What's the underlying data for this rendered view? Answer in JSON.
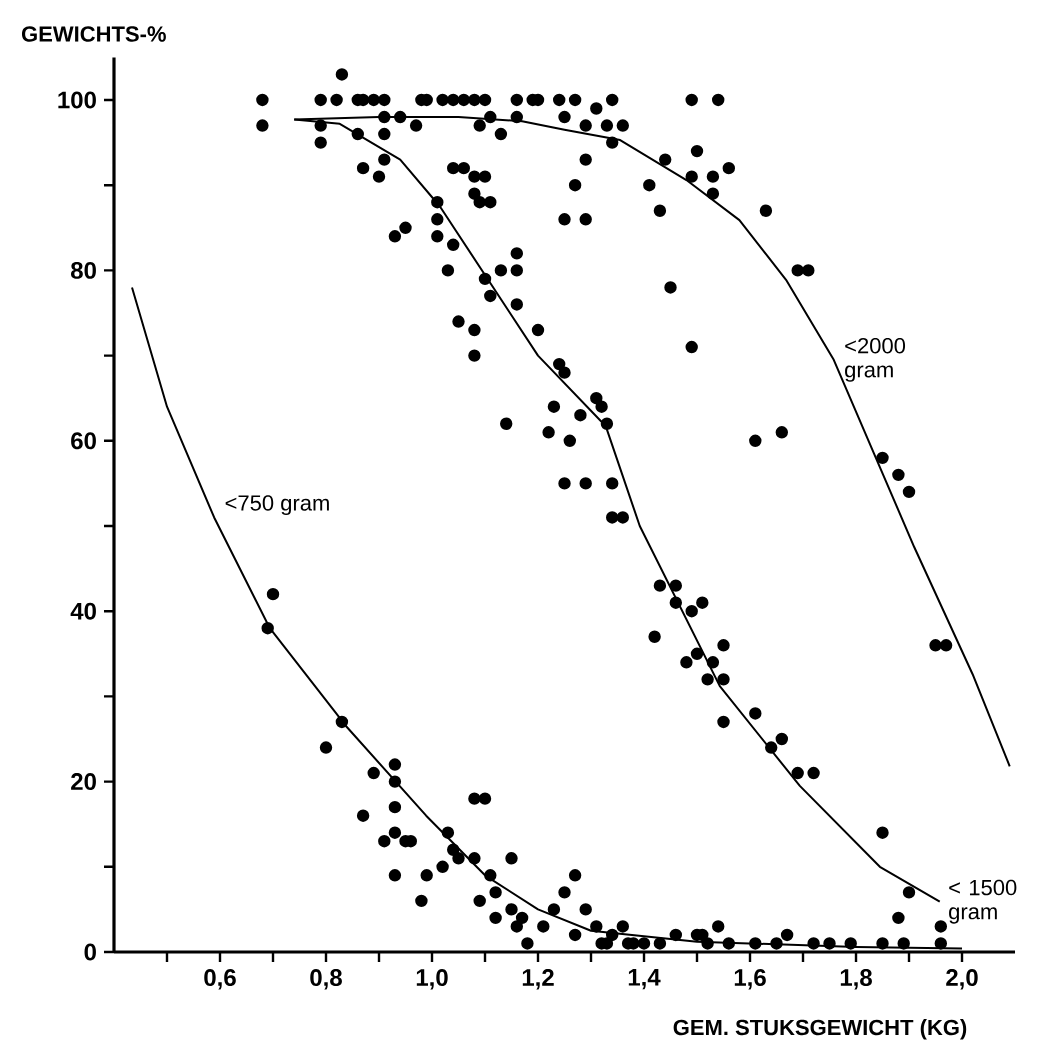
{
  "chart_data": {
    "type": "scatter",
    "ylabel": "GEWICHTS-%",
    "xlabel": "GEM. STUKSGEWICHT (KG)",
    "xlim": [
      0.4,
      2.1
    ],
    "ylim": [
      0,
      105
    ],
    "xticks": [
      {
        "value": 0.5,
        "label": null
      },
      {
        "value": 0.6,
        "label": "0,6"
      },
      {
        "value": 0.7,
        "label": null
      },
      {
        "value": 0.8,
        "label": "0,8"
      },
      {
        "value": 0.9,
        "label": null
      },
      {
        "value": 1.0,
        "label": "1,0"
      },
      {
        "value": 1.1,
        "label": null
      },
      {
        "value": 1.2,
        "label": "1,2"
      },
      {
        "value": 1.3,
        "label": null
      },
      {
        "value": 1.4,
        "label": "1,4"
      },
      {
        "value": 1.5,
        "label": null
      },
      {
        "value": 1.6,
        "label": "1,6"
      },
      {
        "value": 1.7,
        "label": null
      },
      {
        "value": 1.8,
        "label": "1,8"
      },
      {
        "value": 1.9,
        "label": null
      },
      {
        "value": 2.0,
        "label": "2,0"
      }
    ],
    "yticks": [
      0,
      {
        "value": 10,
        "label": null
      },
      20,
      {
        "value": 30,
        "label": null
      },
      40,
      {
        "value": 50,
        "label": null
      },
      60,
      {
        "value": 70,
        "label": null
      },
      80,
      {
        "value": 90,
        "label": null
      },
      100
    ],
    "series": [
      {
        "color": "#000000",
        "marker": "circle",
        "x": [
          0.68,
          0.68,
          0.79,
          0.82,
          0.86,
          0.87,
          0.89,
          0.91,
          0.98,
          0.99,
          1.02,
          1.04,
          1.06,
          1.08,
          1.1,
          1.16,
          1.19,
          0.83,
          0.79,
          0.79,
          0.86,
          0.91,
          0.91,
          0.94,
          0.97,
          1.09,
          1.11,
          1.13,
          1.16,
          0.87,
          0.9,
          0.91,
          0.93,
          0.95,
          1.01,
          1.01,
          1.01,
          1.04,
          1.03,
          1.05,
          1.08,
          1.08,
          1.04,
          1.06,
          1.08,
          1.1,
          1.08,
          1.09,
          1.11,
          1.1,
          1.13,
          1.16,
          1.16,
          1.11,
          1.16,
          1.14,
          1.2,
          1.2,
          1.24,
          1.27,
          1.25,
          1.31,
          1.34,
          1.29,
          1.33,
          1.36,
          1.34,
          1.49,
          1.54,
          1.29,
          1.27,
          1.44,
          1.5,
          1.49,
          1.53,
          1.56,
          1.41,
          1.53,
          1.25,
          1.29,
          1.43,
          1.63,
          1.69,
          1.71,
          1.45,
          1.49,
          1.24,
          1.25,
          1.23,
          1.31,
          1.28,
          1.32,
          1.33,
          1.22,
          1.26,
          1.25,
          1.29,
          1.34,
          1.34,
          1.36,
          1.61,
          1.66,
          1.85,
          1.88,
          1.9,
          0.7,
          0.69,
          0.8,
          0.83,
          0.89,
          0.93,
          0.93,
          0.87,
          0.93,
          0.93,
          0.91,
          0.95,
          0.96,
          0.93,
          0.99,
          0.98,
          1.03,
          1.02,
          1.04,
          1.05,
          1.08,
          1.1,
          1.08,
          1.11,
          1.09,
          1.12,
          1.12,
          1.15,
          1.15,
          1.16,
          1.18,
          1.43,
          1.46,
          1.46,
          1.49,
          1.51,
          1.42,
          1.48,
          1.5,
          1.53,
          1.55,
          1.52,
          1.55,
          1.55,
          1.61,
          1.64,
          1.66,
          1.69,
          1.72,
          1.85,
          1.9,
          1.88,
          1.96,
          1.95,
          1.97,
          1.17,
          1.21,
          1.23,
          1.25,
          1.27,
          1.27,
          1.29,
          1.31,
          1.32,
          1.34,
          1.36,
          1.33,
          1.37,
          1.4,
          1.43,
          1.46,
          1.5,
          1.51,
          1.54,
          1.56,
          1.61,
          1.65,
          1.67,
          1.72,
          1.75,
          1.85,
          1.89,
          1.96,
          1.38,
          1.52,
          1.79
        ],
        "values": [
          100,
          97,
          100,
          100,
          100,
          100,
          100,
          100,
          100,
          100,
          100,
          100,
          100,
          100,
          100,
          100,
          100,
          103,
          97,
          95,
          96,
          96,
          98,
          98,
          97,
          97,
          98,
          96,
          98,
          92,
          91,
          93,
          84,
          85,
          88,
          86,
          84,
          83,
          80,
          74,
          73,
          70,
          92,
          92,
          91,
          91,
          89,
          88,
          88,
          79,
          80,
          82,
          80,
          77,
          76,
          62,
          73,
          100,
          100,
          100,
          98,
          99,
          100,
          97,
          97,
          97,
          95,
          100,
          100,
          93,
          90,
          93,
          94,
          91,
          91,
          92,
          90,
          89,
          86,
          86,
          87,
          87,
          80,
          80,
          78,
          71,
          69,
          68,
          64,
          65,
          63,
          64,
          62,
          61,
          60,
          55,
          55,
          55,
          51,
          51,
          60,
          61,
          58,
          56,
          54,
          42,
          38,
          24,
          27,
          21,
          22,
          20,
          16,
          17,
          14,
          13,
          13,
          13,
          9,
          9,
          6,
          14,
          10,
          12,
          11,
          18,
          18,
          11,
          9,
          6,
          7,
          4,
          11,
          5,
          3,
          1,
          43,
          43,
          41,
          40,
          41,
          37,
          34,
          35,
          34,
          36,
          32,
          32,
          27,
          28,
          24,
          25,
          21,
          21,
          14,
          7,
          4,
          3,
          36,
          36,
          4,
          3,
          5,
          7,
          9,
          2,
          5,
          3,
          1,
          2,
          3,
          1,
          1,
          1,
          1,
          2,
          2,
          2,
          3,
          1,
          1,
          1,
          2,
          1,
          1,
          1,
          1,
          1,
          1,
          1,
          1
        ]
      },
      {
        "type": "line",
        "name": "<750 gram",
        "color": "#000000",
        "x": [
          0.434,
          0.5,
          0.589,
          0.694,
          0.838,
          0.989,
          1.1,
          1.2,
          1.3,
          1.5,
          1.8,
          2.0
        ],
        "values": [
          78,
          64,
          51,
          38,
          26.5,
          16,
          9,
          5,
          2.5,
          1.2,
          0.6,
          0.4
        ]
      },
      {
        "type": "line",
        "name": "< 1500 gram",
        "color": "#000000",
        "x": [
          0.74,
          0.826,
          0.94,
          1.015,
          1.2,
          1.328,
          1.392,
          1.543,
          1.694,
          1.845,
          1.958
        ],
        "values": [
          97.7,
          97.2,
          93,
          87.5,
          70,
          61.7,
          50,
          31.2,
          19.5,
          10,
          5.9
        ]
      },
      {
        "type": "line",
        "name": "<2000 gram",
        "color": "#000000",
        "x": [
          0.74,
          0.9,
          1.05,
          1.17,
          1.25,
          1.355,
          1.48,
          1.58,
          1.668,
          1.758,
          1.834,
          1.91,
          2.02,
          2.09
        ],
        "values": [
          97.7,
          98,
          98,
          97.5,
          96.5,
          95.3,
          90.6,
          85.9,
          78.9,
          69.5,
          58.5,
          47.5,
          32.6,
          21.8
        ]
      }
    ]
  }
}
